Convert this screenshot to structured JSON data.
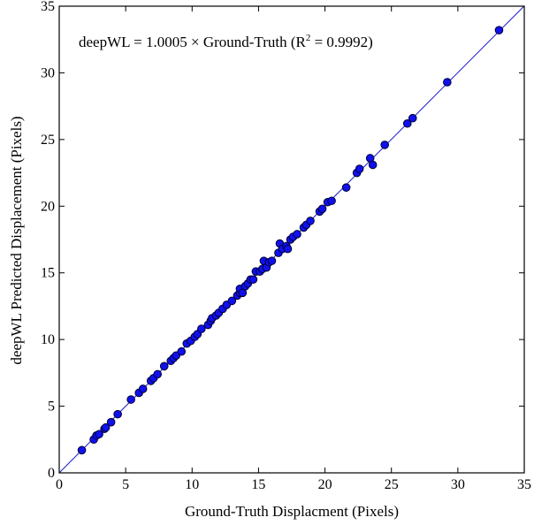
{
  "chart_data": {
    "type": "scatter",
    "title": "",
    "xlabel": "Ground-Truth Displacment (Pixels)",
    "ylabel": "deepWL Predicted Displacement (Pixels)",
    "xlim": [
      0,
      35
    ],
    "ylim": [
      0,
      35
    ],
    "xticks": [
      0,
      5,
      10,
      15,
      20,
      25,
      30,
      35
    ],
    "yticks": [
      0,
      5,
      10,
      15,
      20,
      25,
      30,
      35
    ],
    "xtick_labels": [
      "0",
      "5",
      "10",
      "15",
      "20",
      "25",
      "30",
      "35"
    ],
    "ytick_labels": [
      "0",
      "5",
      "10",
      "15",
      "20",
      "25",
      "30",
      "35"
    ],
    "grid": false,
    "annotation": {
      "prefix": "deepWL = 1.0005 × Ground-Truth (R",
      "superscript": "2",
      "suffix": " = 0.9992)"
    },
    "fit_line": {
      "slope": 1.0005,
      "intercept": 0,
      "color": "#1a1acc"
    },
    "marker_color": "#1010ee",
    "marker_edge": "#000033",
    "series": [
      {
        "points": [
          [
            1.7,
            1.7
          ],
          [
            2.6,
            2.5
          ],
          [
            2.8,
            2.8
          ],
          [
            3.0,
            2.9
          ],
          [
            3.4,
            3.3
          ],
          [
            3.5,
            3.4
          ],
          [
            3.9,
            3.8
          ],
          [
            4.4,
            4.4
          ],
          [
            5.4,
            5.5
          ],
          [
            6.0,
            6.0
          ],
          [
            6.3,
            6.3
          ],
          [
            6.9,
            6.9
          ],
          [
            7.1,
            7.1
          ],
          [
            7.4,
            7.4
          ],
          [
            7.9,
            8.0
          ],
          [
            8.4,
            8.4
          ],
          [
            8.6,
            8.6
          ],
          [
            8.8,
            8.8
          ],
          [
            9.2,
            9.1
          ],
          [
            9.6,
            9.7
          ],
          [
            9.9,
            9.9
          ],
          [
            10.2,
            10.2
          ],
          [
            10.4,
            10.4
          ],
          [
            10.7,
            10.8
          ],
          [
            11.2,
            11.1
          ],
          [
            11.4,
            11.4
          ],
          [
            11.5,
            11.6
          ],
          [
            11.8,
            11.8
          ],
          [
            12.0,
            12.0
          ],
          [
            12.3,
            12.3
          ],
          [
            12.6,
            12.6
          ],
          [
            13.0,
            12.9
          ],
          [
            13.4,
            13.3
          ],
          [
            13.6,
            13.5
          ],
          [
            13.6,
            13.8
          ],
          [
            13.8,
            13.5
          ],
          [
            14.0,
            14.0
          ],
          [
            14.2,
            14.2
          ],
          [
            14.4,
            14.5
          ],
          [
            14.6,
            14.5
          ],
          [
            14.8,
            15.1
          ],
          [
            15.1,
            15.1
          ],
          [
            15.3,
            15.3
          ],
          [
            15.4,
            15.9
          ],
          [
            15.6,
            15.4
          ],
          [
            15.8,
            15.8
          ],
          [
            16.0,
            15.9
          ],
          [
            16.5,
            16.5
          ],
          [
            16.6,
            17.2
          ],
          [
            16.8,
            16.8
          ],
          [
            17.1,
            17.0
          ],
          [
            17.2,
            16.8
          ],
          [
            17.4,
            17.5
          ],
          [
            17.6,
            17.7
          ],
          [
            17.9,
            17.9
          ],
          [
            18.4,
            18.4
          ],
          [
            18.6,
            18.6
          ],
          [
            18.9,
            18.9
          ],
          [
            19.6,
            19.6
          ],
          [
            19.8,
            19.8
          ],
          [
            20.2,
            20.3
          ],
          [
            20.5,
            20.4
          ],
          [
            21.6,
            21.4
          ],
          [
            22.4,
            22.5
          ],
          [
            22.6,
            22.8
          ],
          [
            23.4,
            23.6
          ],
          [
            23.6,
            23.1
          ],
          [
            24.5,
            24.6
          ],
          [
            26.2,
            26.2
          ],
          [
            26.6,
            26.6
          ],
          [
            29.2,
            29.3
          ],
          [
            33.1,
            33.2
          ]
        ]
      }
    ]
  }
}
